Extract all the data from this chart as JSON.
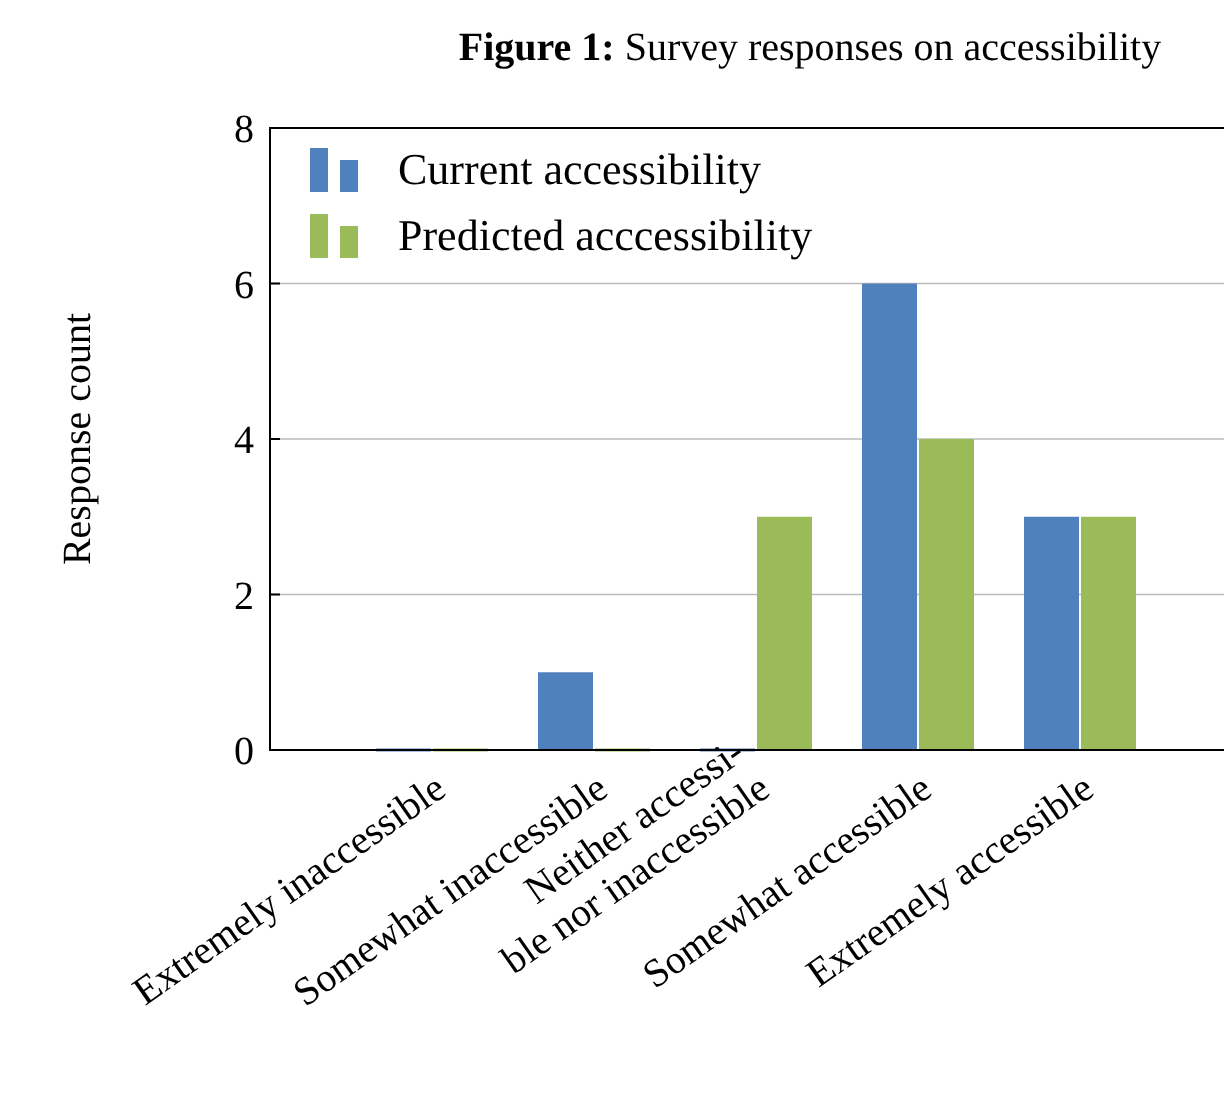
{
  "chart_data": {
    "type": "bar",
    "title": "Figure 1: Survey responses on accessibility",
    "ylabel": "Response count",
    "categories": [
      "Extremely inaccessible",
      "Somewhat inaccessible",
      "Neither accessi-\nble nor inaccessible",
      "Somewhat accessible",
      "Extremely accessible"
    ],
    "series": [
      {
        "name": "Current accessibility",
        "color": "#4f81bd",
        "values": [
          0,
          1,
          0,
          6,
          3
        ]
      },
      {
        "name": "Predicted acccessibility",
        "color": "#9bbb59",
        "values": [
          0,
          0,
          3,
          4,
          3
        ]
      }
    ],
    "ylim": [
      0,
      8
    ],
    "yticks": [
      0,
      2,
      4,
      6,
      8
    ],
    "grid": "y",
    "legend": "top left"
  }
}
